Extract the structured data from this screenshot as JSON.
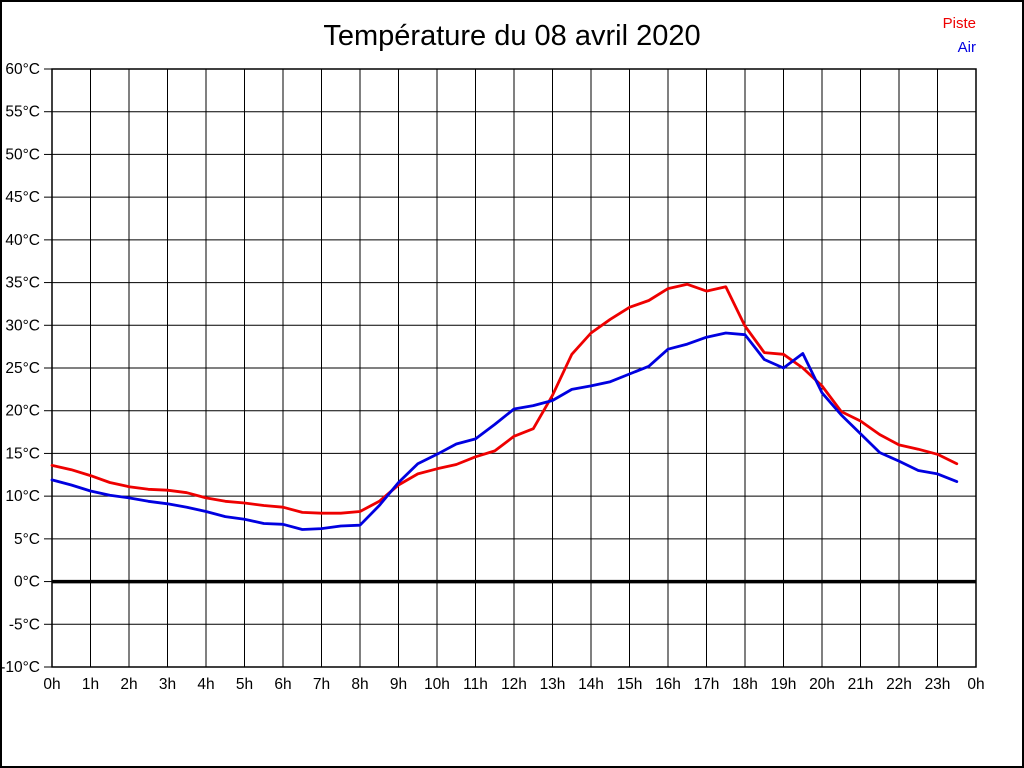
{
  "page": {
    "background": "#ffffff",
    "frame_border_color": "#000000"
  },
  "chart_data": {
    "type": "line",
    "title": "Température du 08 avril 2020",
    "xlabel": "",
    "ylabel": "",
    "xlim": [
      0,
      24
    ],
    "ylim": [
      -10,
      60
    ],
    "grid": true,
    "grid_color": "#000000",
    "zero_line_bold": true,
    "legend_position": "top-right",
    "x_tick_labels": [
      "0h",
      "1h",
      "2h",
      "3h",
      "4h",
      "5h",
      "6h",
      "7h",
      "8h",
      "9h",
      "10h",
      "11h",
      "12h",
      "13h",
      "14h",
      "15h",
      "16h",
      "17h",
      "18h",
      "19h",
      "20h",
      "21h",
      "22h",
      "23h",
      "0h"
    ],
    "y_tick_values": [
      60,
      55,
      50,
      45,
      40,
      35,
      30,
      25,
      20,
      15,
      10,
      5,
      0,
      -5,
      -10
    ],
    "y_tick_labels": [
      "60°C",
      "55°C",
      "50°C",
      "45°C",
      "40°C",
      "35°C",
      "30°C",
      "25°C",
      "20°C",
      "15°C",
      "10°C",
      "5°C",
      "0°C",
      "-5°C",
      "-10°C"
    ],
    "x": [
      0,
      0.5,
      1,
      1.5,
      2,
      2.5,
      3,
      3.5,
      4,
      4.5,
      5,
      5.5,
      6,
      6.5,
      7,
      7.5,
      8,
      8.5,
      9,
      9.5,
      10,
      10.5,
      11,
      11.5,
      12,
      12.5,
      13,
      13.5,
      14,
      14.5,
      15,
      15.5,
      16,
      16.5,
      17,
      17.5,
      18,
      18.5,
      19,
      19.5,
      20,
      20.5,
      21,
      21.5,
      22,
      22.5,
      23,
      23.5
    ],
    "series": [
      {
        "name": "Piste",
        "color": "#ee0000",
        "values": [
          13.6,
          13.1,
          12.4,
          11.6,
          11.1,
          10.8,
          10.7,
          10.4,
          9.8,
          9.4,
          9.2,
          8.9,
          8.7,
          8.1,
          8.0,
          8.0,
          8.2,
          9.4,
          11.3,
          12.6,
          13.2,
          13.7,
          14.6,
          15.3,
          17.0,
          17.9,
          21.8,
          26.6,
          29.1,
          30.7,
          32.1,
          32.9,
          34.3,
          34.8,
          34.0,
          34.5,
          29.9,
          26.8,
          26.6,
          25.0,
          22.9,
          19.9,
          18.8,
          17.2,
          16.0,
          15.5,
          14.9,
          13.8
        ]
      },
      {
        "name": "Air",
        "color": "#0000e0",
        "values": [
          11.9,
          11.3,
          10.6,
          10.1,
          9.8,
          9.4,
          9.1,
          8.7,
          8.2,
          7.6,
          7.3,
          6.8,
          6.7,
          6.1,
          6.2,
          6.5,
          6.6,
          8.9,
          11.6,
          13.8,
          14.9,
          16.1,
          16.7,
          18.4,
          20.2,
          20.6,
          21.2,
          22.5,
          22.9,
          23.4,
          24.3,
          25.2,
          27.2,
          27.8,
          28.6,
          29.1,
          28.9,
          26.0,
          25.0,
          26.7,
          22.1,
          19.5,
          17.3,
          15.1,
          14.1,
          13.0,
          12.6,
          11.7
        ]
      }
    ]
  }
}
